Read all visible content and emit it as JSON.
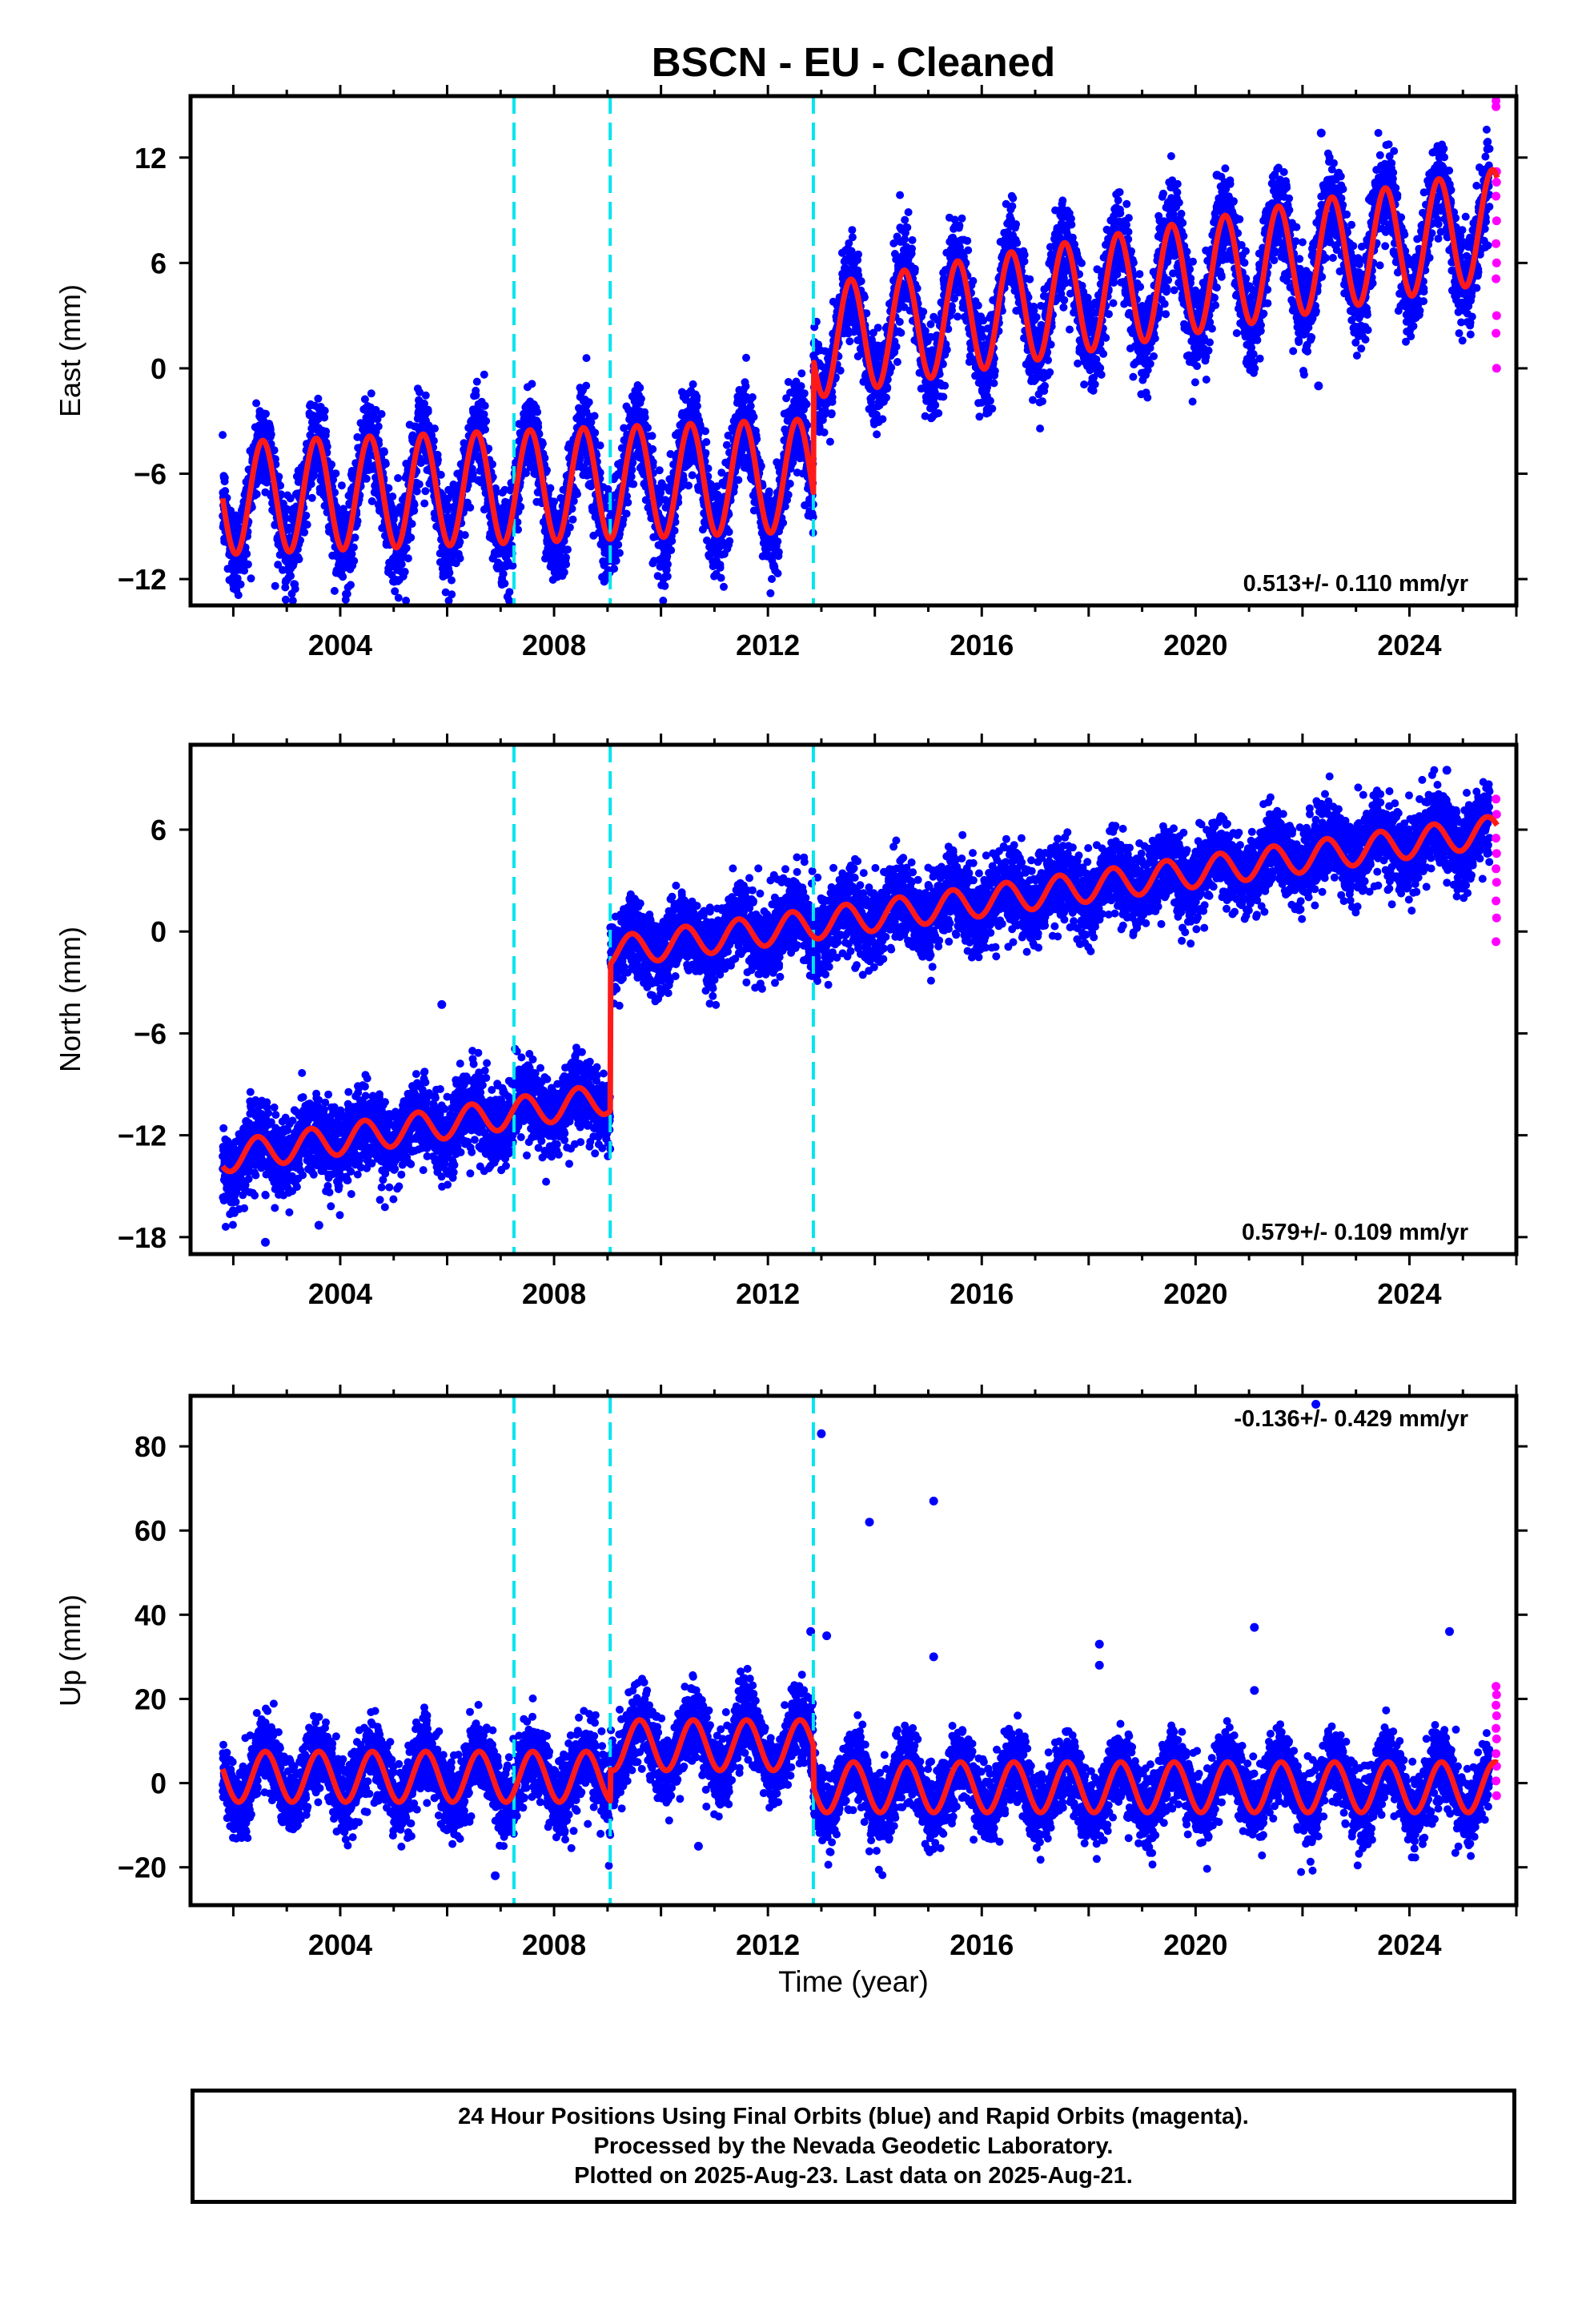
{
  "title": "BSCN  - EU - Cleaned",
  "xlabel": "Time (year)",
  "colors": {
    "final_orbits": "#0000ff",
    "rapid_orbits": "#ff00ff",
    "model": "#ff1a1a",
    "offsets": "#00e5ee",
    "frame": "#000000"
  },
  "footer": {
    "line1": "24 Hour Positions Using Final Orbits (blue) and Rapid Orbits (magenta).",
    "line2": "Processed by the Nevada Geodetic Laboratory.",
    "line3": "Plotted on 2025-Aug-23. Last data on 2025-Aug-21."
  },
  "chart_data": [
    {
      "type": "scatter",
      "component": "East",
      "ylabel": "East (mm)",
      "xlim": [
        2001.2,
        2026.0
      ],
      "ylim": [
        -13.5,
        15.5
      ],
      "xticks": [
        2004,
        2008,
        2012,
        2016,
        2020,
        2024
      ],
      "yticks": [
        -12,
        -6,
        0,
        6,
        12
      ],
      "rate_label": "0.513+/- 0.110 mm/yr",
      "rate_label_position": "bottom-right",
      "offset_epochs": [
        2007.25,
        2009.05,
        2012.85
      ],
      "data_span": [
        2001.8,
        2025.64
      ],
      "rapid_span": [
        2025.5,
        2025.64
      ],
      "model": {
        "segments": [
          {
            "from": 2001.8,
            "to": 2012.85,
            "start": -7.4,
            "rate": 0.12
          },
          {
            "from": 2012.85,
            "to": 2025.64,
            "start": 1.5,
            "rate": 0.52
          }
        ],
        "annual_amplitude": 3.2,
        "peak_phase": 0.55
      },
      "scatter_sigma": 1.3,
      "outliers": [
        [
          2022.35,
          13.4
        ],
        [
          2020.4,
          11.0
        ],
        [
          2022.3,
          -1.0
        ]
      ],
      "rapid_points": [
        [
          2025.62,
          15.3
        ],
        [
          2025.62,
          14.9
        ],
        [
          2025.63,
          11.2
        ],
        [
          2025.63,
          10.6
        ],
        [
          2025.62,
          9.8
        ],
        [
          2025.63,
          8.4
        ],
        [
          2025.62,
          7.1
        ],
        [
          2025.63,
          6.0
        ],
        [
          2025.62,
          5.1
        ],
        [
          2025.63,
          3.0
        ],
        [
          2025.62,
          2.0
        ],
        [
          2025.63,
          0.0
        ]
      ]
    },
    {
      "type": "scatter",
      "component": "North",
      "ylabel": "North (mm)",
      "xlim": [
        2001.2,
        2026.0
      ],
      "ylim": [
        -19.0,
        11.0
      ],
      "xticks": [
        2004,
        2008,
        2012,
        2016,
        2020,
        2024
      ],
      "yticks": [
        -18,
        -12,
        -6,
        0,
        6
      ],
      "rate_label": "0.579+/- 0.109 mm/yr",
      "rate_label_position": "bottom-right",
      "offset_epochs": [
        2007.25,
        2009.05,
        2012.85
      ],
      "data_span": [
        2001.8,
        2025.64
      ],
      "rapid_span": [
        2025.5,
        2025.64
      ],
      "model": {
        "segments": [
          {
            "from": 2001.8,
            "to": 2009.05,
            "start": -13.3,
            "rate": 0.48
          },
          {
            "from": 2009.05,
            "to": 2025.64,
            "start": -1.2,
            "rate": 0.43
          }
        ],
        "annual_amplitude": 0.9,
        "peak_phase": 0.45
      },
      "scatter_sigma": 1.15,
      "outliers": [
        [
          2005.9,
          -4.3
        ],
        [
          2003.6,
          -17.3
        ],
        [
          2002.6,
          -18.3
        ],
        [
          2024.7,
          9.5
        ]
      ],
      "rapid_points": [
        [
          2025.62,
          7.8
        ],
        [
          2025.63,
          6.9
        ],
        [
          2025.62,
          5.5
        ],
        [
          2025.63,
          4.6
        ],
        [
          2025.62,
          3.7
        ],
        [
          2025.63,
          2.9
        ],
        [
          2025.62,
          1.8
        ],
        [
          2025.63,
          0.8
        ],
        [
          2025.62,
          -0.6
        ]
      ]
    },
    {
      "type": "scatter",
      "component": "Up",
      "ylabel": "Up (mm)",
      "xlim": [
        2001.2,
        2026.0
      ],
      "ylim": [
        -29.0,
        92.0
      ],
      "xticks": [
        2004,
        2008,
        2012,
        2016,
        2020,
        2024
      ],
      "yticks": [
        -20,
        0,
        20,
        40,
        60,
        80
      ],
      "rate_label": "-0.136+/- 0.429 mm/yr",
      "rate_label_position": "top-right",
      "offset_epochs": [
        2007.25,
        2009.05,
        2012.85
      ],
      "data_span": [
        2001.8,
        2025.64
      ],
      "rapid_span": [
        2025.5,
        2025.64
      ],
      "model": {
        "segments": [
          {
            "from": 2001.8,
            "to": 2009.05,
            "start": 1.5,
            "rate": 0.0
          },
          {
            "from": 2009.05,
            "to": 2012.85,
            "start": 9.0,
            "rate": 0.0
          },
          {
            "from": 2012.85,
            "to": 2025.64,
            "start": -1.0,
            "rate": 0.0
          }
        ],
        "annual_amplitude": 6.0,
        "peak_phase": 0.6
      },
      "scatter_sigma": 4.3,
      "outliers": [
        [
          2013.0,
          83.0
        ],
        [
          2015.1,
          67.0
        ],
        [
          2013.9,
          62.0
        ],
        [
          2022.25,
          90.0
        ],
        [
          2021.1,
          37.0
        ],
        [
          2024.75,
          36.0
        ],
        [
          2012.8,
          36.0
        ],
        [
          2013.1,
          35.0
        ],
        [
          2018.2,
          33.0
        ],
        [
          2015.1,
          30.0
        ],
        [
          2018.2,
          28.0
        ],
        [
          2021.1,
          22.0
        ],
        [
          2010.7,
          -15.0
        ],
        [
          2006.9,
          -22.0
        ]
      ],
      "rapid_points": [
        [
          2025.62,
          23.0
        ],
        [
          2025.63,
          21.0
        ],
        [
          2025.62,
          18.5
        ],
        [
          2025.63,
          16.0
        ],
        [
          2025.62,
          13.0
        ],
        [
          2025.63,
          10.5
        ],
        [
          2025.62,
          7.0
        ],
        [
          2025.63,
          4.0
        ],
        [
          2025.62,
          0.5
        ],
        [
          2025.63,
          -3.0
        ]
      ]
    }
  ]
}
